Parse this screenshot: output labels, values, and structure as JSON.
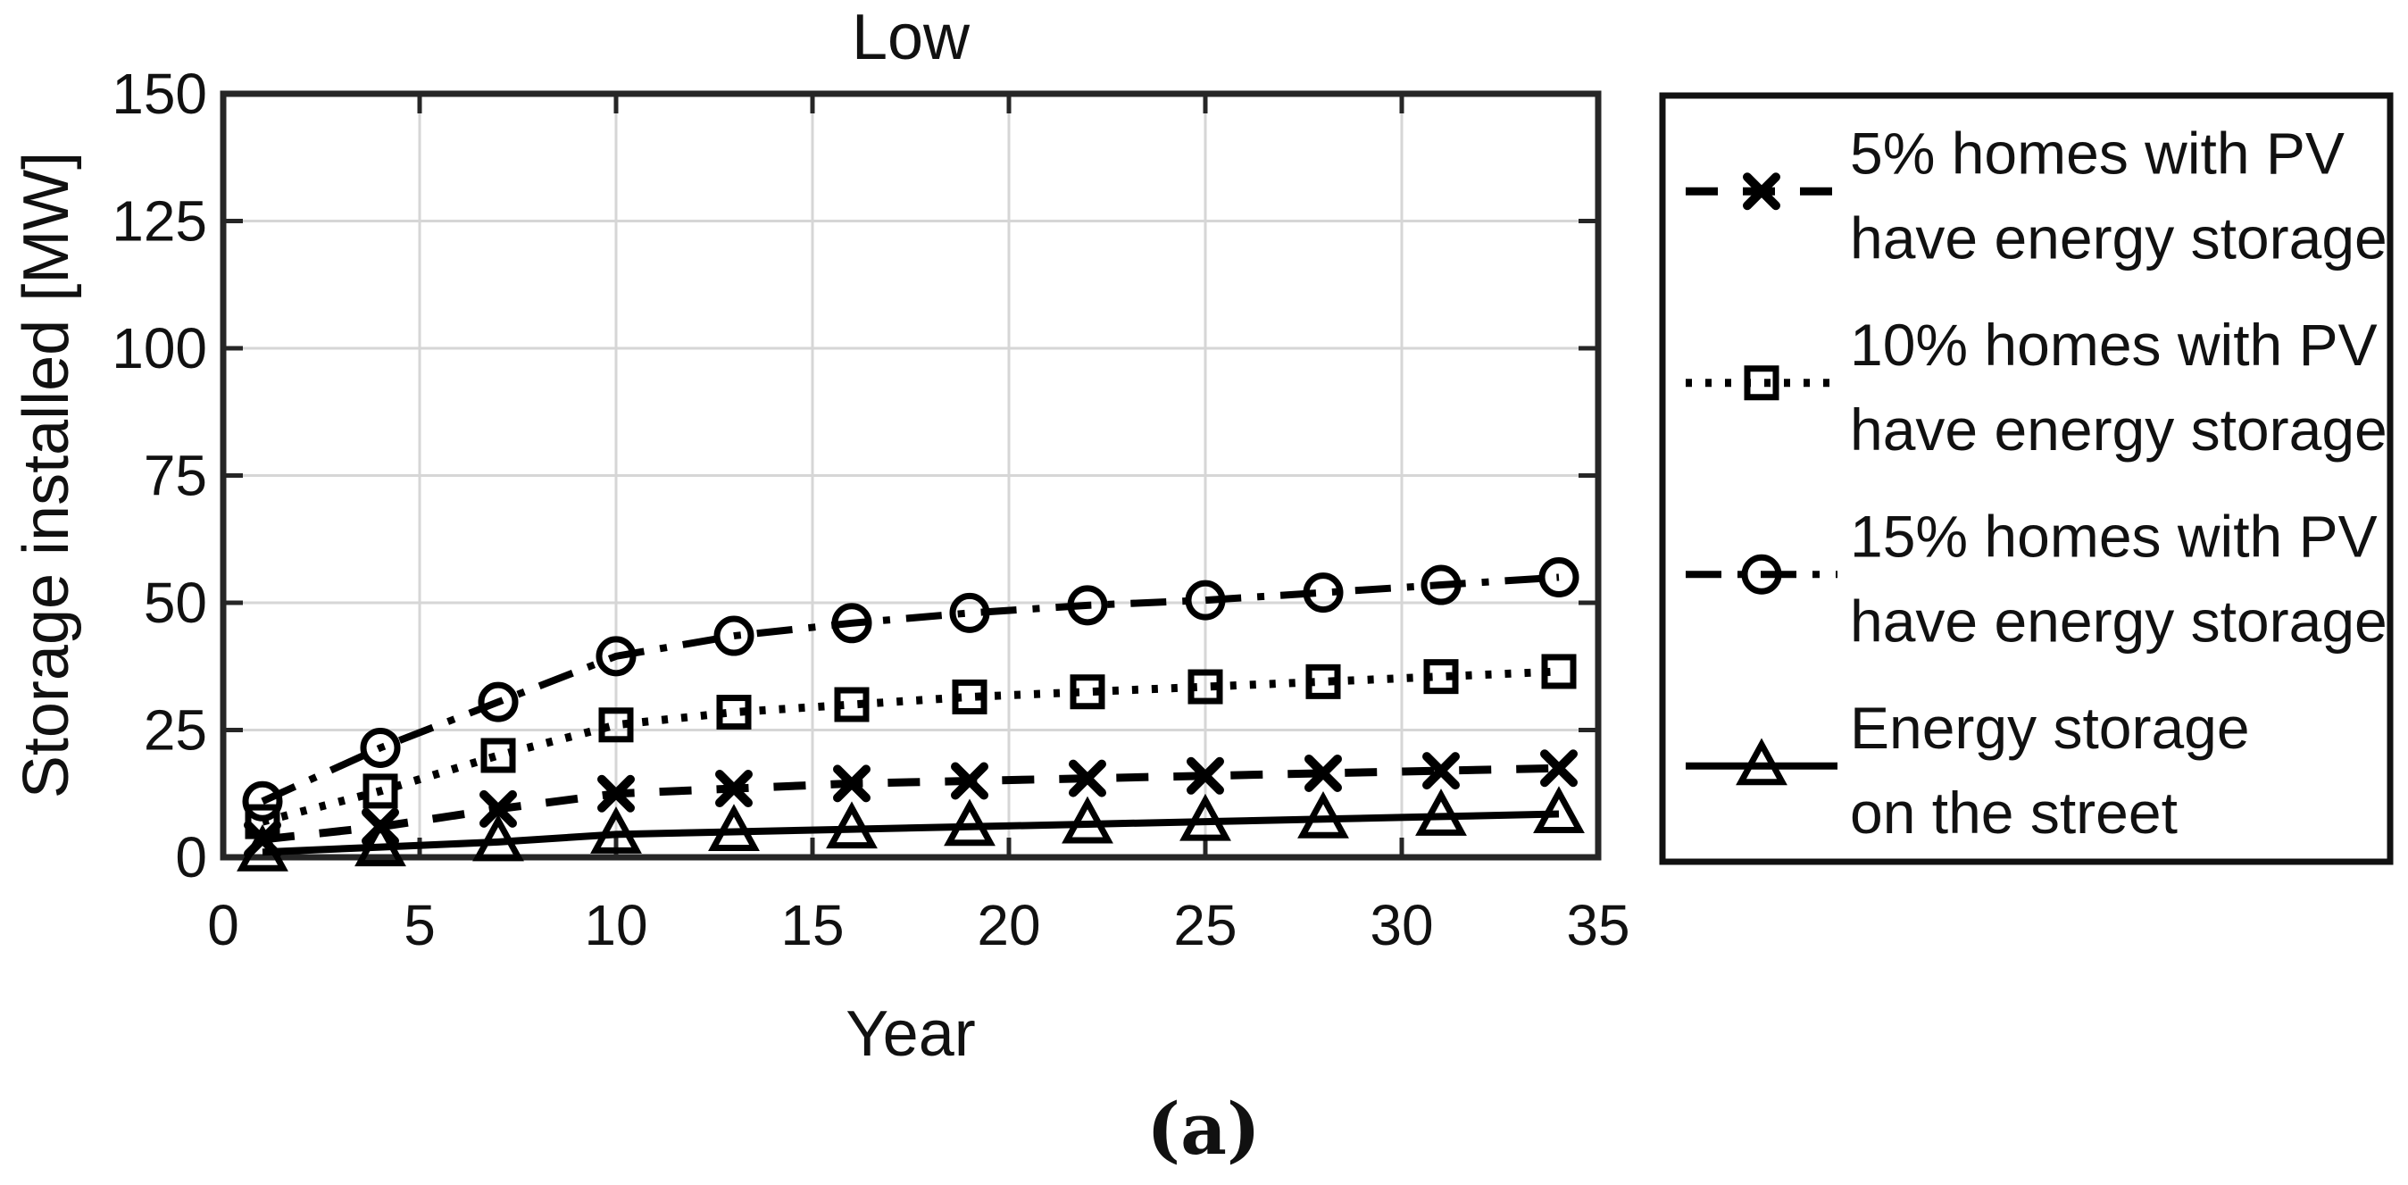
{
  "figure": {
    "caption": "(a)"
  },
  "chart_data": {
    "type": "line",
    "title": "Low",
    "xlabel": "Year",
    "ylabel": "Storage installed [MW]",
    "xlim": [
      0,
      35
    ],
    "ylim": [
      0,
      150
    ],
    "xticks": [
      0,
      5,
      10,
      15,
      20,
      25,
      30,
      35
    ],
    "yticks": [
      0,
      25,
      50,
      75,
      100,
      125,
      150
    ],
    "grid": true,
    "legend_position": "outside-right",
    "x": [
      1,
      4,
      7,
      10,
      13,
      16,
      19,
      22,
      25,
      28,
      31,
      34
    ],
    "series": [
      {
        "name": "5% homes with PV have energy storage",
        "legend_lines": [
          "5% homes with PV",
          "have energy storage"
        ],
        "line_style": "dashed",
        "marker": "x",
        "color": "#000000",
        "values": [
          3.5,
          6,
          9.5,
          12.5,
          13.5,
          14.5,
          15,
          15.5,
          16,
          16.5,
          17,
          17.5
        ]
      },
      {
        "name": "10% homes with PV have energy storage",
        "legend_lines": [
          "10% homes with PV",
          "have energy storage"
        ],
        "line_style": "dotted",
        "marker": "square",
        "color": "#000000",
        "values": [
          7,
          13,
          20,
          26,
          28.5,
          30,
          31.5,
          32.5,
          33.5,
          34.5,
          35.5,
          36.5
        ]
      },
      {
        "name": "15% homes with PV have energy storage",
        "legend_lines": [
          "15% homes with PV",
          "have energy storage"
        ],
        "line_style": "dashdot",
        "marker": "circle",
        "color": "#000000",
        "values": [
          11,
          21.5,
          30.5,
          39.5,
          43.5,
          46,
          48,
          49.5,
          50.5,
          52,
          53.5,
          55
        ]
      },
      {
        "name": "Energy storage on the street",
        "legend_lines": [
          "Energy storage",
          "on the street"
        ],
        "line_style": "solid",
        "marker": "triangle",
        "color": "#000000",
        "values": [
          1,
          2,
          3,
          4.5,
          5,
          5.5,
          6,
          6.5,
          7,
          7.5,
          8,
          8.5
        ]
      }
    ]
  },
  "colors": {
    "grid": "#d6d6d6",
    "axis": "#262626",
    "text": "#111111",
    "background": "#ffffff"
  }
}
